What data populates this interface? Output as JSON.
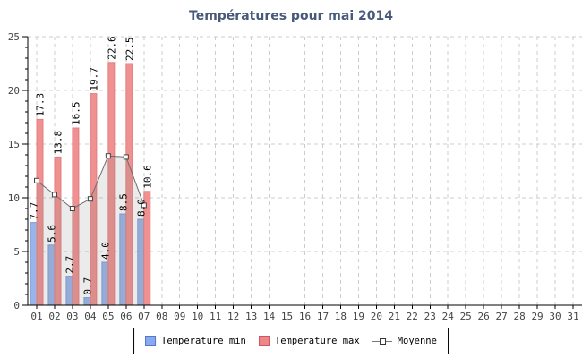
{
  "title": "Températures pour mai 2014",
  "colors": {
    "title_text": "#475a7a",
    "min_fill": "#99b4e8",
    "min_border": "#7e9cd8",
    "max_fill": "#f09090",
    "max_border": "#e07f7f",
    "legend_min_swatch": "#88aaee",
    "legend_min_border": "#5577cc",
    "legend_max_swatch": "#ee8888",
    "legend_max_border": "#cc5566",
    "area_fill": "rgba(130,130,130,0.16)",
    "line": "#6e6e6e",
    "marker_fill": "#ffffff",
    "marker_border": "#444444",
    "grid": "#cccccc",
    "axis": "#000000",
    "tick_text": "#444444",
    "bar_label_text": "#000000"
  },
  "legend": {
    "items": [
      {
        "label": "Temperature min"
      },
      {
        "label": "Temperature max"
      },
      {
        "label": "Moyenne"
      }
    ]
  },
  "chart_data": {
    "type": "bar",
    "title": "Températures pour mai 2014",
    "categories": [
      "01",
      "02",
      "03",
      "04",
      "05",
      "06",
      "07",
      "08",
      "09",
      "10",
      "11",
      "12",
      "13",
      "14",
      "15",
      "16",
      "17",
      "18",
      "19",
      "20",
      "21",
      "22",
      "23",
      "24",
      "25",
      "26",
      "27",
      "28",
      "29",
      "30",
      "31"
    ],
    "series": [
      {
        "name": "Temperature min",
        "type": "bar",
        "values": [
          7.7,
          5.6,
          2.7,
          0.7,
          4.0,
          8.5,
          8.0
        ]
      },
      {
        "name": "Temperature max",
        "type": "bar",
        "values": [
          17.3,
          13.8,
          16.5,
          19.7,
          22.6,
          22.5,
          10.6
        ]
      },
      {
        "name": "Moyenne",
        "type": "line",
        "values": [
          11.6,
          10.3,
          9.0,
          9.9,
          13.9,
          13.8,
          9.3
        ]
      }
    ],
    "ylim": [
      0,
      25
    ],
    "y_major_step": 5,
    "y_minor_step": 1,
    "grid": "dashed",
    "legend_position": "bottom",
    "bar_value_labels": "rotated-90"
  }
}
